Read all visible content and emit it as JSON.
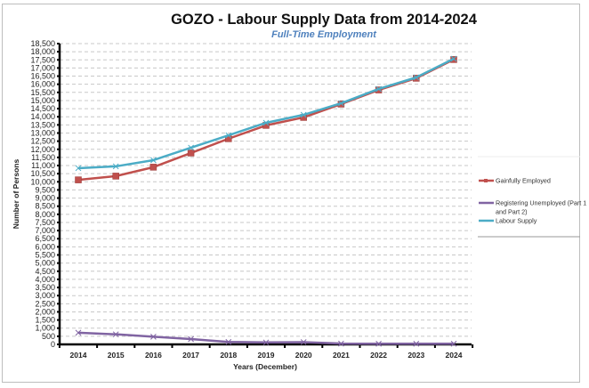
{
  "chart_data": {
    "type": "line",
    "title": "GOZO - Labour Supply Data from 2014-2024",
    "subtitle": "Full-Time Employment",
    "xlabel": "Years (December)",
    "ylabel": "Number of Persons",
    "categories": [
      "2014",
      "2015",
      "2016",
      "2017",
      "2018",
      "2019",
      "2020",
      "2021",
      "2022",
      "2023",
      "2024"
    ],
    "ylim": [
      0,
      18500
    ],
    "ytick_step": 500,
    "yticks": [
      "0",
      "500",
      "1,000",
      "1,500",
      "2,000",
      "2,500",
      "3,000",
      "3,500",
      "4,000",
      "4,500",
      "5,000",
      "5,500",
      "6,000",
      "6,500",
      "7,000",
      "7,500",
      "8,000",
      "8,500",
      "9,000",
      "9,500",
      "10,000",
      "10,500",
      "11,000",
      "11,500",
      "12,000",
      "12,500",
      "13,000",
      "13,500",
      "14,000",
      "14,500",
      "15,000",
      "15,500",
      "16,000",
      "16,500",
      "17,000",
      "17,500",
      "18,000",
      "18,500"
    ],
    "grid": true,
    "legend_position": "right",
    "series": [
      {
        "name": "Gainfully Employed",
        "color": "#c0504d",
        "marker": "square",
        "values": [
          10120,
          10350,
          10900,
          11770,
          12650,
          13470,
          13960,
          14780,
          15650,
          16370,
          17520
        ]
      },
      {
        "name": "Registering Unemployed (Part 1 and Part 2)",
        "legend_lines": [
          "Registering Unemployed (Part 1",
          "and Part 2)"
        ],
        "color": "#8064a2",
        "marker": "x",
        "values": [
          720,
          620,
          470,
          330,
          150,
          120,
          140,
          50,
          40,
          40,
          40
        ]
      },
      {
        "name": "Labour Supply",
        "color": "#4bacc6",
        "marker": "x",
        "values": [
          10840,
          10950,
          11330,
          12100,
          12860,
          13630,
          14120,
          14830,
          15710,
          16420,
          17570
        ]
      }
    ]
  }
}
